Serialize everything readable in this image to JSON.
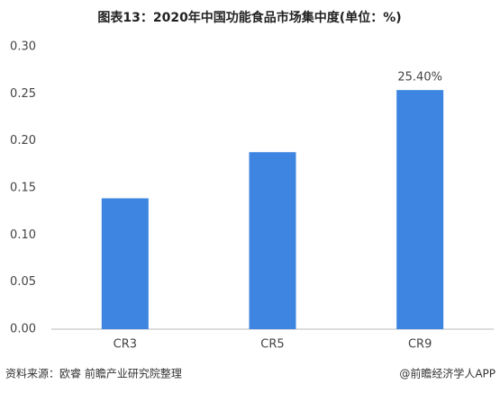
{
  "chart_data": {
    "type": "bar",
    "title": "图表13：2020年中国功能食品市场集中度(单位：%)",
    "categories": [
      "CR3",
      "CR5",
      "CR9"
    ],
    "values": [
      0.139,
      0.188,
      0.254
    ],
    "value_labels": [
      null,
      null,
      "25.40%"
    ],
    "color": "#3d85e0",
    "ylim": [
      0,
      0.3
    ],
    "yticks": [
      {
        "value": 0,
        "label": "0.00"
      },
      {
        "value": 0.05,
        "label": "0.05"
      },
      {
        "value": 0.1,
        "label": "0.10"
      },
      {
        "value": 0.15,
        "label": "0.15"
      },
      {
        "value": 0.2,
        "label": "0.20"
      },
      {
        "value": 0.25,
        "label": "0.25"
      },
      {
        "value": 0.3,
        "label": "0.30"
      }
    ],
    "grid": false,
    "source": "资料来源：欧睿 前瞻产业研究院整理",
    "credit": "@前瞻经济学人APP"
  }
}
